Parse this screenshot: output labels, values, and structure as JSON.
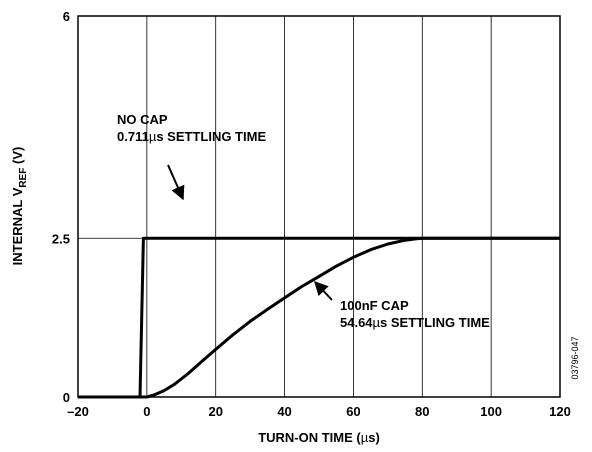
{
  "chart_data": {
    "type": "line",
    "x": [
      -20,
      -2,
      -1,
      0,
      2,
      5,
      8,
      12,
      16,
      20,
      25,
      30,
      35,
      40,
      45,
      50,
      55,
      60,
      65,
      70,
      75,
      78,
      80,
      82,
      100,
      120
    ],
    "series": [
      {
        "name": "NO CAP",
        "values": [
          0,
          0,
          2.5,
          2.5,
          2.5,
          2.5,
          2.5,
          2.5,
          2.5,
          2.5,
          2.5,
          2.5,
          2.5,
          2.5,
          2.5,
          2.5,
          2.5,
          2.5,
          2.5,
          2.5,
          2.5,
          2.5,
          2.5,
          2.5,
          2.5,
          2.5
        ]
      },
      {
        "name": "100nF CAP",
        "values": [
          0,
          0,
          0,
          0,
          0.03,
          0.1,
          0.2,
          0.37,
          0.56,
          0.75,
          0.98,
          1.19,
          1.38,
          1.56,
          1.74,
          1.9,
          2.06,
          2.2,
          2.32,
          2.41,
          2.47,
          2.49,
          2.5,
          2.5,
          2.5,
          2.5
        ]
      }
    ],
    "xlim": [
      -20,
      120
    ],
    "ylim": [
      0,
      6
    ],
    "xticks": [
      -20,
      0,
      20,
      40,
      60,
      80,
      100,
      120
    ],
    "xtick_labels": [
      "–20",
      "0",
      "20",
      "40",
      "60",
      "80",
      "100",
      "120"
    ],
    "yticks": [
      0,
      2.5,
      6
    ],
    "ytick_labels": [
      "0",
      "2.5",
      "6"
    ],
    "xlabel_pre": "TURN-ON TIME (",
    "xlabel_mu": "µ",
    "xlabel_post": "s)",
    "ylabel_pre": "INTERNAL V",
    "ylabel_sub": "REF",
    "ylabel_post": " (V)",
    "annotations": {
      "nocap_line1": "NO CAP",
      "nocap_line2_num": "0.711",
      "nocap_line2_mu": "µ",
      "nocap_line2_rest": "s SETTLING TIME",
      "cap_line1": "100nF CAP",
      "cap_line2_num": "54.64",
      "cap_line2_mu": "µ",
      "cap_line2_rest": "s SETTLING TIME"
    },
    "figure_id": "03796-047",
    "grid": "vertical"
  }
}
